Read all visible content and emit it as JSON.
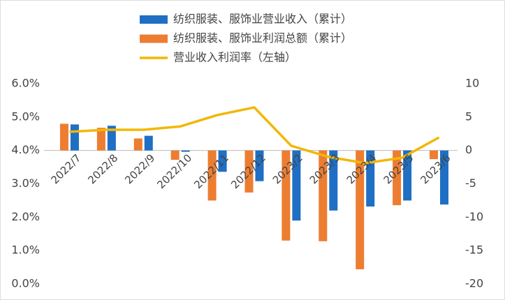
{
  "chart_data": {
    "type": "bar",
    "categories": [
      "2022/7",
      "2022/8",
      "2022/9",
      "2022/10",
      "2022/11",
      "2022/12",
      "2023/2",
      "2023/3",
      "2023/4",
      "2023/5",
      "2023/6"
    ],
    "series": [
      {
        "name": "纺织服装、服饰业营业收入（累计）",
        "type": "bar",
        "axis": "y2",
        "color": "#1f6fc4",
        "values": [
          3.9,
          3.7,
          2.2,
          -0.2,
          -3.2,
          -4.6,
          -10.5,
          -9.0,
          -8.4,
          -7.5,
          -8.1
        ]
      },
      {
        "name": "纺织服装、服饰业利润总额（累计）",
        "type": "bar",
        "axis": "y2",
        "color": "#ed7d31",
        "values": [
          4.0,
          3.4,
          1.8,
          -1.4,
          -7.5,
          -6.3,
          -13.5,
          -13.6,
          -17.8,
          -8.2,
          -1.3
        ]
      },
      {
        "name": "营业收入利润率（左轴）",
        "type": "line",
        "color": "#f2b705",
        "values": [
          4.56,
          4.62,
          4.62,
          4.72,
          5.06,
          5.29,
          4.14,
          3.81,
          3.62,
          3.78,
          4.39
        ]
      }
    ],
    "ylim": [
      0,
      6
    ],
    "yticks": [
      {
        "value": 0,
        "label": "0.0%"
      },
      {
        "value": 1,
        "label": "1.0%"
      },
      {
        "value": 2,
        "label": "2.0%"
      },
      {
        "value": 3,
        "label": "3.0%"
      },
      {
        "value": 4,
        "label": "4.0%"
      },
      {
        "value": 5,
        "label": "5.0%"
      },
      {
        "value": 6,
        "label": "6.0%"
      }
    ],
    "y2lim": [
      -20,
      10
    ],
    "y2ticks": [
      -20,
      -15,
      -10,
      -5,
      0,
      5,
      10
    ],
    "grid": false
  }
}
